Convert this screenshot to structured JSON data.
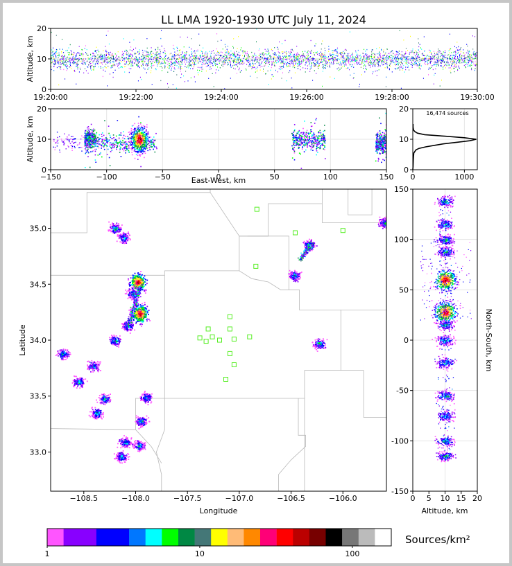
{
  "chart_data": [
    {
      "id": "time_altitude",
      "type": "scatter",
      "title": "LL LMA 1920-1930 UTC July 11, 2024",
      "ylabel": "Altitude, km",
      "xlim": [
        "19:20:00",
        "19:30:00"
      ],
      "ylim": [
        0,
        20
      ],
      "xticks": [
        "19:20:00",
        "19:22:00",
        "19:24:00",
        "19:26:00",
        "19:28:00",
        "19:30:00"
      ],
      "yticks": [
        0,
        10,
        20
      ],
      "band_altitude_range": [
        6,
        14
      ]
    },
    {
      "id": "ew_altitude",
      "type": "heatmap",
      "xlabel": "East-West, km",
      "ylabel": "Altitude, km",
      "xlim": [
        -150,
        150
      ],
      "ylim": [
        0,
        20
      ],
      "xticks": [
        -150,
        -100,
        -50,
        0,
        50,
        100,
        150
      ],
      "yticks": [
        0,
        10,
        20
      ],
      "clusters": [
        {
          "ew_range": [
            -120,
            -110
          ],
          "alt_center": 10
        },
        {
          "ew_range": [
            -110,
            -55
          ],
          "alt_center": 9
        },
        {
          "ew_center": -71,
          "alt_center": 10,
          "peak": true
        },
        {
          "ew_range": [
            65,
            95
          ],
          "alt_center": 10
        },
        {
          "ew_range": [
            140,
            150
          ],
          "alt_center": 9
        }
      ]
    },
    {
      "id": "altitude_histogram",
      "type": "line",
      "annotation": "16,474 sources",
      "xlim": [
        0,
        1250
      ],
      "ylim": [
        0,
        20
      ],
      "xticks": [
        0,
        1000
      ],
      "yticks": [
        0,
        10,
        20
      ],
      "profile": [
        {
          "alt": 0.0,
          "count": 0
        },
        {
          "alt": 1.0,
          "count": 5
        },
        {
          "alt": 3.0,
          "count": 10
        },
        {
          "alt": 4.5,
          "count": 15
        },
        {
          "alt": 5.5,
          "count": 20
        },
        {
          "alt": 6.5,
          "count": 60
        },
        {
          "alt": 7.0,
          "count": 120
        },
        {
          "alt": 7.5,
          "count": 250
        },
        {
          "alt": 8.0,
          "count": 420
        },
        {
          "alt": 8.5,
          "count": 600
        },
        {
          "alt": 9.0,
          "count": 850
        },
        {
          "alt": 9.5,
          "count": 1100
        },
        {
          "alt": 10.0,
          "count": 1230
        },
        {
          "alt": 10.5,
          "count": 1000
        },
        {
          "alt": 11.0,
          "count": 620
        },
        {
          "alt": 11.5,
          "count": 230
        },
        {
          "alt": 12.0,
          "count": 90
        },
        {
          "alt": 12.5,
          "count": 40
        },
        {
          "alt": 13.0,
          "count": 15
        },
        {
          "alt": 14.0,
          "count": 5
        },
        {
          "alt": 15.0,
          "count": 5
        }
      ]
    },
    {
      "id": "plan_view",
      "type": "heatmap",
      "xlabel": "Longitude",
      "ylabel": "Latitude",
      "xlim": [
        -108.82,
        -105.58
      ],
      "ylim": [
        32.65,
        35.35
      ],
      "xticks": [
        -108.5,
        -108.0,
        -107.5,
        -107.0,
        -106.5,
        -106.0
      ],
      "yticks": [
        33.0,
        33.5,
        34.0,
        34.5,
        35.0
      ],
      "xtick_labels": [
        "−108.5",
        "−108.0",
        "−107.5",
        "−107.0",
        "−106.5",
        "−106.0"
      ],
      "ytick_labels": [
        "33.0",
        "33.5",
        "34.0",
        "34.5",
        "35.0"
      ],
      "stations": [
        {
          "lon": -106.83,
          "lat": 35.17
        },
        {
          "lon": -106.46,
          "lat": 34.96
        },
        {
          "lon": -106.0,
          "lat": 34.98
        },
        {
          "lon": -106.84,
          "lat": 34.66
        },
        {
          "lon": -107.09,
          "lat": 34.21
        },
        {
          "lon": -107.3,
          "lat": 34.1
        },
        {
          "lon": -107.09,
          "lat": 34.1
        },
        {
          "lon": -107.38,
          "lat": 34.02
        },
        {
          "lon": -107.26,
          "lat": 34.03
        },
        {
          "lon": -107.32,
          "lat": 33.99
        },
        {
          "lon": -107.19,
          "lat": 34.0
        },
        {
          "lon": -107.05,
          "lat": 34.01
        },
        {
          "lon": -106.9,
          "lat": 34.03
        },
        {
          "lon": -107.09,
          "lat": 33.88
        },
        {
          "lon": -107.05,
          "lat": 33.78
        },
        {
          "lon": -107.13,
          "lat": 33.65
        }
      ],
      "clusters": [
        {
          "lon": -108.2,
          "lat": 35.0
        },
        {
          "lon": -108.12,
          "lat": 34.92
        },
        {
          "lon": -107.98,
          "lat": 34.52,
          "peak": true
        },
        {
          "lon": -108.03,
          "lat": 34.42
        },
        {
          "lon": -107.96,
          "lat": 34.24,
          "peak": true
        },
        {
          "lon": -108.08,
          "lat": 34.13
        },
        {
          "lon": -108.2,
          "lat": 34.0
        },
        {
          "lon": -108.7,
          "lat": 33.88
        },
        {
          "lon": -108.41,
          "lat": 33.77
        },
        {
          "lon": -108.55,
          "lat": 33.63
        },
        {
          "lon": -108.3,
          "lat": 33.48
        },
        {
          "lon": -107.9,
          "lat": 33.49
        },
        {
          "lon": -108.38,
          "lat": 33.35
        },
        {
          "lon": -107.95,
          "lat": 33.28
        },
        {
          "lon": -108.1,
          "lat": 33.09
        },
        {
          "lon": -107.97,
          "lat": 33.06
        },
        {
          "lon": -108.14,
          "lat": 32.96
        },
        {
          "lon": -106.33,
          "lat": 34.85
        },
        {
          "lon": -106.23,
          "lat": 33.97
        },
        {
          "lon": -106.47,
          "lat": 34.58
        },
        {
          "lon": -105.6,
          "lat": 35.05
        }
      ]
    },
    {
      "id": "ns_altitude",
      "type": "heatmap",
      "xlabel": "Altitude, km",
      "ylabel": "North-South, km",
      "xlim": [
        0,
        20
      ],
      "ylim": [
        -150,
        150
      ],
      "xticks": [
        0,
        5,
        10,
        15,
        20
      ],
      "yticks": [
        -150,
        -100,
        -50,
        0,
        50,
        100,
        150
      ],
      "clusters": [
        {
          "ns": 138
        },
        {
          "ns": 115
        },
        {
          "ns": 100
        },
        {
          "ns": 88
        },
        {
          "ns": 60,
          "peak": true
        },
        {
          "ns": 28,
          "peak": true
        },
        {
          "ns": 15
        },
        {
          "ns": 0
        },
        {
          "ns": -22
        },
        {
          "ns": -55
        },
        {
          "ns": -75
        },
        {
          "ns": -100
        },
        {
          "ns": -115
        }
      ]
    }
  ],
  "colorbar": {
    "label": "Sources/km²",
    "ticks": [
      {
        "value": 1,
        "text": "1"
      },
      {
        "value": 10,
        "text": "10"
      },
      {
        "value": 100,
        "text": "100"
      }
    ],
    "range": [
      1,
      180
    ],
    "colors": [
      "#ff55ff",
      "#8800ff",
      "#8800ff",
      "#0000ff",
      "#0000ff",
      "#0077ff",
      "#00ffff",
      "#00ff00",
      "#008844",
      "#447777",
      "#ffff00",
      "#ffbb77",
      "#ff8800",
      "#ff0077",
      "#ff0000",
      "#bb0000",
      "#770000",
      "#000000",
      "#777777",
      "#bbbbbb",
      "#ffffff"
    ]
  }
}
